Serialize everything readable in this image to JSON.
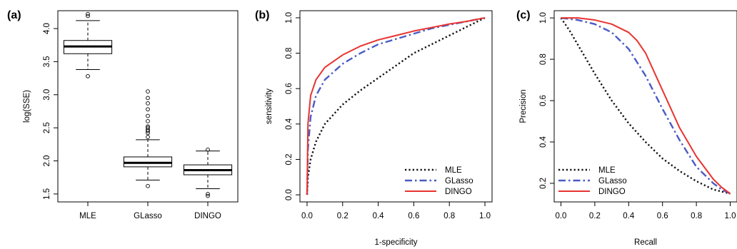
{
  "chart_data": [
    {
      "panel_label": "(a)",
      "type": "box",
      "title": "",
      "xlabel": "",
      "ylabel": "log(SSE)",
      "ylim": [
        1.38,
        4.27
      ],
      "categories": [
        "MLE",
        "GLasso",
        "DINGO"
      ],
      "yticks": [
        1.5,
        2.0,
        2.5,
        3.0,
        3.5,
        4.0
      ],
      "ytick_labels": [
        "1.5",
        "2.0",
        "2.5",
        "3.0",
        "3.5",
        "4.0"
      ],
      "boxes": [
        {
          "q1": 3.62,
          "median": 3.73,
          "q3": 3.82,
          "whisker_low": 3.38,
          "whisker_high": 4.12,
          "outliers": [
            3.28,
            4.19,
            4.22
          ]
        },
        {
          "q1": 1.91,
          "median": 1.97,
          "q3": 2.06,
          "whisker_low": 1.71,
          "whisker_high": 2.32,
          "outliers": [
            1.62,
            2.36,
            2.42,
            2.45,
            2.47,
            2.5,
            2.52,
            2.6,
            2.68,
            2.78,
            2.87,
            2.95,
            3.05
          ]
        },
        {
          "q1": 1.79,
          "median": 1.86,
          "q3": 1.94,
          "whisker_low": 1.58,
          "whisker_high": 2.15,
          "outliers": [
            1.47,
            1.5,
            2.17
          ]
        }
      ]
    },
    {
      "panel_label": "(b)",
      "type": "line",
      "title": "",
      "xlabel": "1-specificity",
      "ylabel": "sensitivity",
      "xlim": [
        -0.04,
        1.04
      ],
      "ylim": [
        -0.04,
        1.04
      ],
      "xticks": [
        0.0,
        0.2,
        0.4,
        0.6,
        0.8,
        1.0
      ],
      "xtick_labels": [
        "0.0",
        "0.2",
        "0.4",
        "0.6",
        "0.8",
        "1.0"
      ],
      "yticks": [
        0.0,
        0.2,
        0.4,
        0.6,
        0.8,
        1.0
      ],
      "ytick_labels": [
        "0.0",
        "0.2",
        "0.4",
        "0.6",
        "0.8",
        "1.0"
      ],
      "legend": "bottom-right",
      "series": [
        {
          "name": "MLE",
          "color": "#111111",
          "style": "dotted",
          "x": [
            0.0,
            0.005,
            0.02,
            0.05,
            0.1,
            0.2,
            0.3,
            0.4,
            0.5,
            0.6,
            0.7,
            0.8,
            0.9,
            1.0
          ],
          "y": [
            0.0,
            0.1,
            0.2,
            0.3,
            0.4,
            0.51,
            0.59,
            0.66,
            0.73,
            0.8,
            0.85,
            0.9,
            0.95,
            1.0
          ]
        },
        {
          "name": "GLasso",
          "color": "#4a5bc4",
          "style": "dashdot",
          "x": [
            0.0,
            0.005,
            0.02,
            0.05,
            0.1,
            0.2,
            0.3,
            0.4,
            0.5,
            0.6,
            0.7,
            0.8,
            0.9,
            1.0
          ],
          "y": [
            0.0,
            0.26,
            0.44,
            0.56,
            0.65,
            0.74,
            0.8,
            0.85,
            0.88,
            0.91,
            0.94,
            0.96,
            0.98,
            1.0
          ]
        },
        {
          "name": "DINGO",
          "color": "#e8332f",
          "style": "solid",
          "x": [
            0.0,
            0.005,
            0.02,
            0.05,
            0.1,
            0.2,
            0.3,
            0.4,
            0.5,
            0.6,
            0.7,
            0.8,
            0.9,
            1.0
          ],
          "y": [
            0.0,
            0.4,
            0.56,
            0.65,
            0.72,
            0.79,
            0.84,
            0.875,
            0.9,
            0.925,
            0.945,
            0.965,
            0.98,
            1.0
          ]
        }
      ]
    },
    {
      "panel_label": "(c)",
      "type": "line",
      "title": "",
      "xlabel": "Recall",
      "ylabel": "Precision",
      "xlim": [
        -0.04,
        1.04
      ],
      "ylim": [
        0.11,
        1.035
      ],
      "xticks": [
        0.0,
        0.2,
        0.4,
        0.6,
        0.8,
        1.0
      ],
      "xtick_labels": [
        "0.0",
        "0.2",
        "0.4",
        "0.6",
        "0.8",
        "1.0"
      ],
      "yticks": [
        0.2,
        0.4,
        0.6,
        0.8,
        1.0
      ],
      "ytick_labels": [
        "0.2",
        "0.4",
        "0.6",
        "0.8",
        "1.0"
      ],
      "legend": "bottom-left",
      "series": [
        {
          "name": "MLE",
          "color": "#111111",
          "style": "dotted",
          "x": [
            0.0,
            0.05,
            0.1,
            0.2,
            0.3,
            0.4,
            0.5,
            0.6,
            0.7,
            0.8,
            0.9,
            1.0
          ],
          "y": [
            1.0,
            0.94,
            0.87,
            0.73,
            0.6,
            0.49,
            0.4,
            0.32,
            0.26,
            0.21,
            0.17,
            0.15
          ]
        },
        {
          "name": "GLasso",
          "color": "#4a5bc4",
          "style": "dashdot",
          "x": [
            0.0,
            0.1,
            0.2,
            0.3,
            0.4,
            0.5,
            0.6,
            0.7,
            0.8,
            0.9,
            0.95,
            1.0
          ],
          "y": [
            1.0,
            0.99,
            0.97,
            0.93,
            0.85,
            0.72,
            0.56,
            0.41,
            0.28,
            0.2,
            0.17,
            0.15
          ]
        },
        {
          "name": "DINGO",
          "color": "#e8332f",
          "style": "solid",
          "x": [
            0.0,
            0.1,
            0.2,
            0.3,
            0.4,
            0.45,
            0.5,
            0.6,
            0.7,
            0.8,
            0.9,
            0.95,
            1.0
          ],
          "y": [
            1.0,
            1.0,
            0.99,
            0.97,
            0.93,
            0.89,
            0.83,
            0.65,
            0.47,
            0.33,
            0.22,
            0.18,
            0.15
          ]
        }
      ]
    }
  ]
}
